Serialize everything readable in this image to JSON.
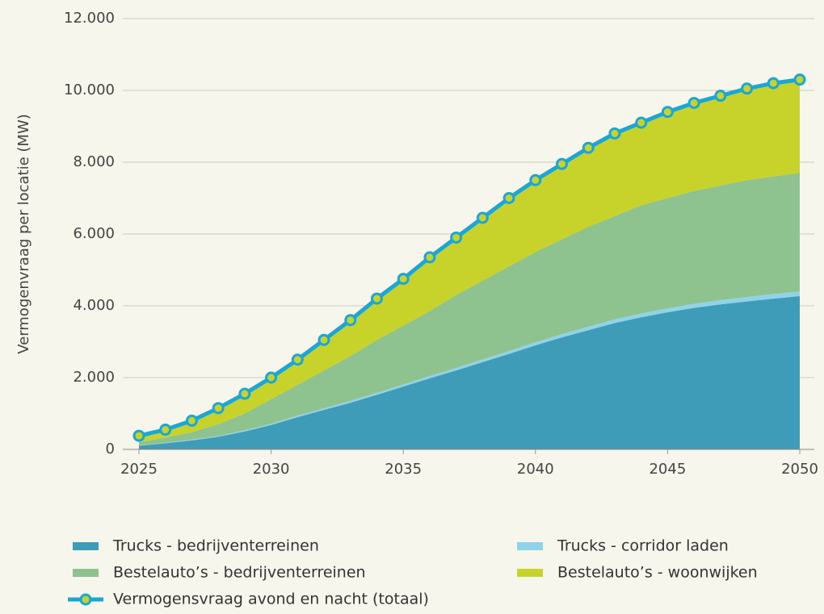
{
  "chart_data": {
    "type": "stacked-area",
    "y_label": "Vermogenvraag per locatie (MW)",
    "x": [
      2025,
      2026,
      2027,
      2028,
      2029,
      2030,
      2031,
      2032,
      2033,
      2034,
      2035,
      2036,
      2037,
      2038,
      2039,
      2040,
      2041,
      2042,
      2043,
      2044,
      2045,
      2046,
      2047,
      2048,
      2049,
      2050
    ],
    "xlim": [
      2025,
      2050
    ],
    "xticks": [
      2025,
      2030,
      2035,
      2040,
      2045,
      2050
    ],
    "ylim": [
      0,
      12000
    ],
    "yticks": [
      0,
      {
        "value": 2000,
        "label": "2.000"
      },
      {
        "value": 4000,
        "label": "4.000"
      },
      {
        "value": 6000,
        "label": "6.000"
      },
      {
        "value": 8000,
        "label": "8.000"
      },
      {
        "value": 10000,
        "label": "10.000"
      },
      {
        "value": 12000,
        "label": "12.000"
      }
    ],
    "grid": true,
    "series": [
      {
        "name": "Trucks - bedrijventerreinen",
        "color": "#3f9cb9",
        "values": [
          100,
          170,
          250,
          350,
          500,
          680,
          900,
          1100,
          1300,
          1520,
          1750,
          1980,
          2200,
          2430,
          2660,
          2900,
          3120,
          3320,
          3520,
          3680,
          3820,
          3940,
          4040,
          4120,
          4200,
          4270
        ]
      },
      {
        "name": "Trucks - corridor laden",
        "color": "#8fd3ea",
        "values": [
          10,
          15,
          20,
          25,
          30,
          35,
          40,
          45,
          50,
          55,
          60,
          65,
          70,
          75,
          80,
          85,
          90,
          95,
          100,
          105,
          110,
          115,
          120,
          125,
          128,
          130
        ]
      },
      {
        "name": "Bestelauto’s - bedrijventerreinen",
        "color": "#8ec28e",
        "values": [
          90,
          145,
          210,
          325,
          470,
          685,
          860,
          1055,
          1250,
          1475,
          1640,
          1805,
          2030,
          2195,
          2360,
          2515,
          2640,
          2785,
          2880,
          3015,
          3070,
          3145,
          3190,
          3255,
          3272,
          3300
        ]
      },
      {
        "name": "Bestelauto’s - woonwijken",
        "color": "#c7d32b",
        "values": [
          180,
          220,
          320,
          450,
          550,
          600,
          700,
          850,
          1000,
          1150,
          1300,
          1500,
          1600,
          1750,
          1900,
          2000,
          2100,
          2200,
          2300,
          2300,
          2400,
          2450,
          2500,
          2550,
          2600,
          2600
        ]
      }
    ],
    "line_series": {
      "name": "Vermogensvraag avond en nacht (totaal)",
      "color": "#1aa6d6",
      "marker_color": "#c7d32b",
      "values": [
        380,
        550,
        800,
        1150,
        1550,
        2000,
        2500,
        3050,
        3600,
        4200,
        4750,
        5350,
        5900,
        6450,
        7000,
        7500,
        7950,
        8400,
        8800,
        9100,
        9400,
        9650,
        9850,
        10050,
        10200,
        10300
      ]
    }
  }
}
